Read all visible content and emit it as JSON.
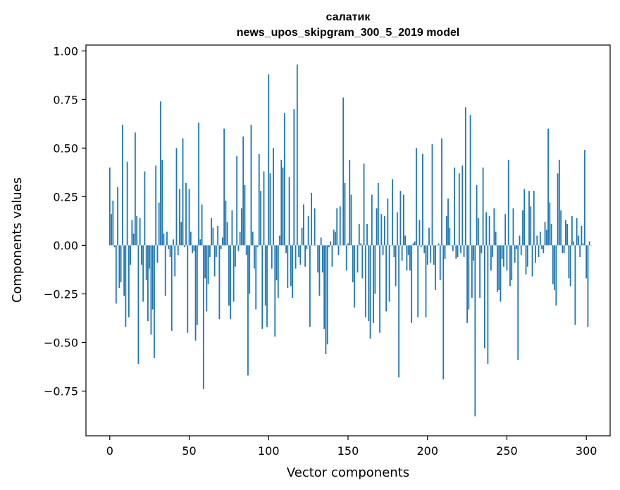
{
  "chart_data": {
    "type": "bar",
    "title": "салатик",
    "subtitle": "news_upos_skipgram_300_5_2019 model",
    "xlabel": "Vector components",
    "ylabel": "Components values",
    "xlim": [
      -15,
      315
    ],
    "ylim": [
      -0.98,
      1.03
    ],
    "xticks": [
      0,
      50,
      100,
      150,
      200,
      250,
      300
    ],
    "xtick_labels": [
      "0",
      "50",
      "100",
      "150",
      "200",
      "250",
      "300"
    ],
    "yticks": [
      -0.75,
      -0.5,
      -0.25,
      0.0,
      0.25,
      0.5,
      0.75,
      1.0
    ],
    "ytick_labels": [
      "−0.75",
      "−0.50",
      "−0.25",
      "0.00",
      "0.25",
      "0.50",
      "0.75",
      "1.00"
    ],
    "grid": false,
    "bar_color": "#1f77b4",
    "values": [
      0.4,
      0.16,
      0.23,
      -0.01,
      -0.3,
      0.3,
      -0.22,
      -0.19,
      0.62,
      -0.26,
      -0.42,
      0.43,
      -0.37,
      -0.1,
      0.13,
      0.06,
      0.58,
      0.15,
      -0.61,
      0.14,
      -0.1,
      -0.29,
      0.38,
      -0.18,
      -0.39,
      -0.12,
      -0.46,
      -0.33,
      -0.58,
      0.41,
      -0.09,
      0.22,
      0.74,
      0.44,
      0.06,
      -0.26,
      0.07,
      -0.02,
      -0.06,
      -0.44,
      0.03,
      -0.16,
      0.5,
      -0.05,
      0.29,
      0.12,
      0.55,
      -0.01,
      0.32,
      -0.45,
      0.29,
      0.07,
      -0.04,
      -0.03,
      -0.49,
      -0.41,
      0.63,
      0.03,
      0.21,
      -0.74,
      -0.17,
      -0.34,
      -0.2,
      -0.06,
      0.14,
      0.09,
      -0.16,
      -0.06,
      0.1,
      -0.38,
      -0.02,
      0.04,
      0.6,
      0.23,
      0.12,
      -0.31,
      -0.38,
      0.18,
      -0.29,
      -0.11,
      0.46,
      -0.03,
      0.07,
      0.19,
      0.56,
      0.31,
      -0.05,
      -0.67,
      -0.25,
      0.62,
      0.07,
      -0.12,
      -0.33,
      -0.01,
      0.47,
      0.28,
      -0.43,
      0.38,
      -0.31,
      -0.42,
      0.88,
      0.37,
      -0.12,
      0.5,
      -0.47,
      -0.18,
      -0.27,
      0.05,
      0.44,
      0.4,
      0.68,
      -0.04,
      -0.22,
      0.35,
      -0.21,
      -0.27,
      0.7,
      -0.12,
      0.93,
      -0.06,
      -0.1,
      0.09,
      0.21,
      -0.11,
      -0.02,
      0.15,
      -0.42,
      0.27,
      0.0,
      0.19,
      0.0,
      -0.14,
      -0.26,
      0.04,
      -0.14,
      -0.43,
      -0.56,
      -0.51,
      -0.01,
      0.02,
      -0.11,
      0.08,
      0.07,
      0.19,
      -0.05,
      0.2,
      0.0,
      0.76,
      0.32,
      -0.13,
      0.01,
      0.44,
      0.26,
      -0.19,
      -0.32,
      0.0,
      -0.14,
      0.11,
      0.01,
      -0.17,
      0.42,
      -0.37,
      0.11,
      -0.39,
      -0.48,
      0.26,
      -0.4,
      -0.25,
      0.19,
      0.32,
      -0.45,
      0.16,
      -0.05,
      0.15,
      -0.34,
      0.24,
      -0.29,
      0.0,
      0.34,
      -0.06,
      -0.21,
      0.17,
      -0.68,
      0.28,
      -0.08,
      0.26,
      0.05,
      -0.13,
      -0.05,
      -0.13,
      -0.4,
      0.01,
      0.02,
      0.5,
      -0.37,
      0.13,
      -0.01,
      0.47,
      -0.04,
      -0.37,
      -0.1,
      0.09,
      -0.09,
      0.52,
      -0.1,
      -0.23,
      0.0,
      0.01,
      -0.18,
      0.55,
      -0.69,
      -0.07,
      0.15,
      0.24,
      0.09,
      0.0,
      -0.03,
      0.4,
      -0.07,
      -0.06,
      0.37,
      -0.04,
      0.41,
      -0.06,
      0.71,
      -0.4,
      -0.33,
      0.67,
      -0.27,
      -0.08,
      -0.88,
      0.31,
      0.14,
      -0.27,
      -0.04,
      0.4,
      -0.53,
      0.17,
      -0.61,
      0.15,
      -0.13,
      -0.06,
      0.19,
      0.07,
      -0.24,
      -0.23,
      -0.29,
      -0.07,
      -0.11,
      0.16,
      -0.13,
      0.44,
      -0.21,
      -0.18,
      0.19,
      -0.09,
      -0.02,
      -0.59,
      0.05,
      -0.05,
      0.18,
      0.29,
      -0.15,
      -0.11,
      0.28,
      0.2,
      -0.16,
      0.28,
      -0.09,
      0.05,
      -0.06,
      0.07,
      -0.02,
      -0.04,
      0.12,
      0.08,
      0.6,
      0.22,
      0.11,
      -0.2,
      -0.23,
      -0.31,
      0.37,
      0.44,
      0.18,
      -0.04,
      -0.04,
      0.13,
      0.11,
      -0.17,
      -0.21,
      0.15,
      0.02,
      -0.41,
      0.14,
      0.05,
      -0.06,
      0.1,
      0.01,
      0.49,
      -0.17,
      -0.42,
      0.02,
      0.0
    ]
  }
}
